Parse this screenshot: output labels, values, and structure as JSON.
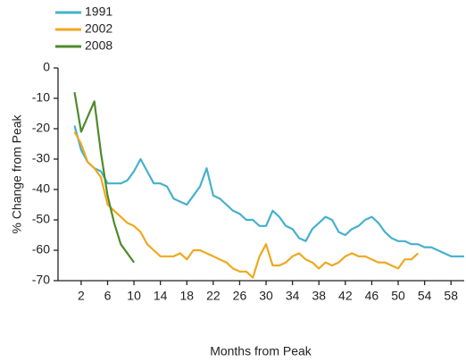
{
  "chart_data": {
    "type": "line",
    "xlabel": "Months from Peak",
    "ylabel": "% Change from Peak",
    "xlim": [
      -1.5,
      60
    ],
    "xticks": [
      2,
      6,
      10,
      14,
      18,
      22,
      26,
      30,
      34,
      38,
      42,
      46,
      50,
      54,
      58
    ],
    "ylim": [
      -70,
      0
    ],
    "yticks": [
      0,
      -10,
      -20,
      -30,
      -40,
      -50,
      -60,
      -70
    ],
    "grid": false,
    "legend": "top-left",
    "series": [
      {
        "name": "1991",
        "color": "#45b1cc",
        "x": [
          1,
          2,
          3,
          4,
          5,
          6,
          7,
          8,
          9,
          10,
          11,
          12,
          13,
          14,
          15,
          16,
          17,
          18,
          19,
          20,
          21,
          22,
          23,
          24,
          25,
          26,
          27,
          28,
          29,
          30,
          31,
          32,
          33,
          34,
          35,
          36,
          37,
          38,
          39,
          40,
          41,
          42,
          43,
          44,
          45,
          46,
          47,
          48,
          49,
          50,
          51,
          52,
          53,
          54,
          55,
          56,
          57,
          58,
          59,
          60
        ],
        "values": [
          -19,
          -27,
          -31,
          -33,
          -34,
          -38,
          -38,
          -38,
          -37,
          -34,
          -30,
          -34,
          -38,
          -38,
          -39,
          -43,
          -44,
          -45,
          -42,
          -39,
          -33,
          -42,
          -43,
          -45,
          -47,
          -48,
          -50,
          -50,
          -52,
          -52,
          -47,
          -49,
          -52,
          -53,
          -56,
          -57,
          -53,
          -51,
          -49,
          -50,
          -54,
          -55,
          -53,
          -52,
          -50,
          -49,
          -51,
          -54,
          -56,
          -57,
          -57,
          -58,
          -58,
          -59,
          -59,
          -60,
          -61,
          -62,
          -62,
          -62
        ]
      },
      {
        "name": "2002",
        "color": "#eea91f",
        "x": [
          1,
          2,
          3,
          4,
          5,
          6,
          7,
          8,
          9,
          10,
          11,
          12,
          13,
          14,
          15,
          16,
          17,
          18,
          19,
          20,
          21,
          22,
          23,
          24,
          25,
          26,
          27,
          28,
          29,
          30,
          31,
          32,
          33,
          34,
          35,
          36,
          37,
          38,
          39,
          40,
          41,
          42,
          43,
          44,
          45,
          46,
          47,
          48,
          49,
          50,
          51,
          52,
          53
        ],
        "values": [
          -21,
          -25,
          -31,
          -33,
          -36,
          -45,
          -47,
          -49,
          -51,
          -52,
          -54,
          -58,
          -60,
          -62,
          -62,
          -62,
          -61,
          -63,
          -60,
          -60,
          -61,
          -62,
          -63,
          -64,
          -66,
          -67,
          -67,
          -69,
          -62,
          -58,
          -65,
          -65,
          -64,
          -62,
          -61,
          -63,
          -64,
          -66,
          -64,
          -65,
          -64,
          -62,
          -61,
          -62,
          -62,
          -63,
          -64,
          -64,
          -65,
          -66,
          -63,
          -63,
          -61
        ]
      },
      {
        "name": "2008",
        "color": "#4f8a2a",
        "x": [
          1,
          2,
          3,
          4,
          5,
          6,
          7,
          8,
          9,
          10
        ],
        "values": [
          -8,
          -21,
          -16,
          -11,
          -28,
          -42,
          -51,
          -58,
          -61,
          -64
        ]
      }
    ]
  }
}
